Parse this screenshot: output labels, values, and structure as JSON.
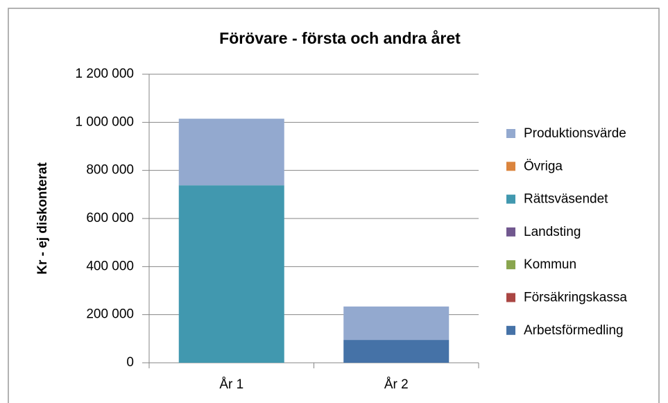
{
  "chart_data": {
    "type": "stacked_bar",
    "title": "Förövare - första  och andra året",
    "y_label": "Kr - ej diskonterat",
    "categories": [
      "År 1",
      "År 2"
    ],
    "series": [
      {
        "name": "Arbetsförmedling",
        "color": "#4572a7",
        "values": [
          0,
          95000
        ]
      },
      {
        "name": "Försäkringskassa",
        "color": "#aa4643",
        "values": [
          0,
          0
        ]
      },
      {
        "name": "Kommun",
        "color": "#89a54e",
        "values": [
          0,
          0
        ]
      },
      {
        "name": "Landsting",
        "color": "#71588f",
        "values": [
          0,
          0
        ]
      },
      {
        "name": "Rättsväsendet",
        "color": "#4198af",
        "values": [
          738000,
          0
        ]
      },
      {
        "name": "Övriga",
        "color": "#db843d",
        "values": [
          0,
          0
        ]
      },
      {
        "name": "Produktionsvärde",
        "color": "#93a9cf",
        "values": [
          277000,
          139000
        ]
      }
    ],
    "ylim": [
      0,
      1200000
    ],
    "yticks": [
      0,
      {
        "value": 200000,
        "label": "200 000"
      },
      {
        "value": 400000,
        "label": "400 000"
      },
      {
        "value": 600000,
        "label": "600 000"
      },
      {
        "value": 800000,
        "label": "800 000"
      },
      {
        "value": 1000000,
        "label": "1 000 000"
      },
      {
        "value": 1200000,
        "label": "1 200 000"
      }
    ],
    "grid": true,
    "legend": "right"
  }
}
